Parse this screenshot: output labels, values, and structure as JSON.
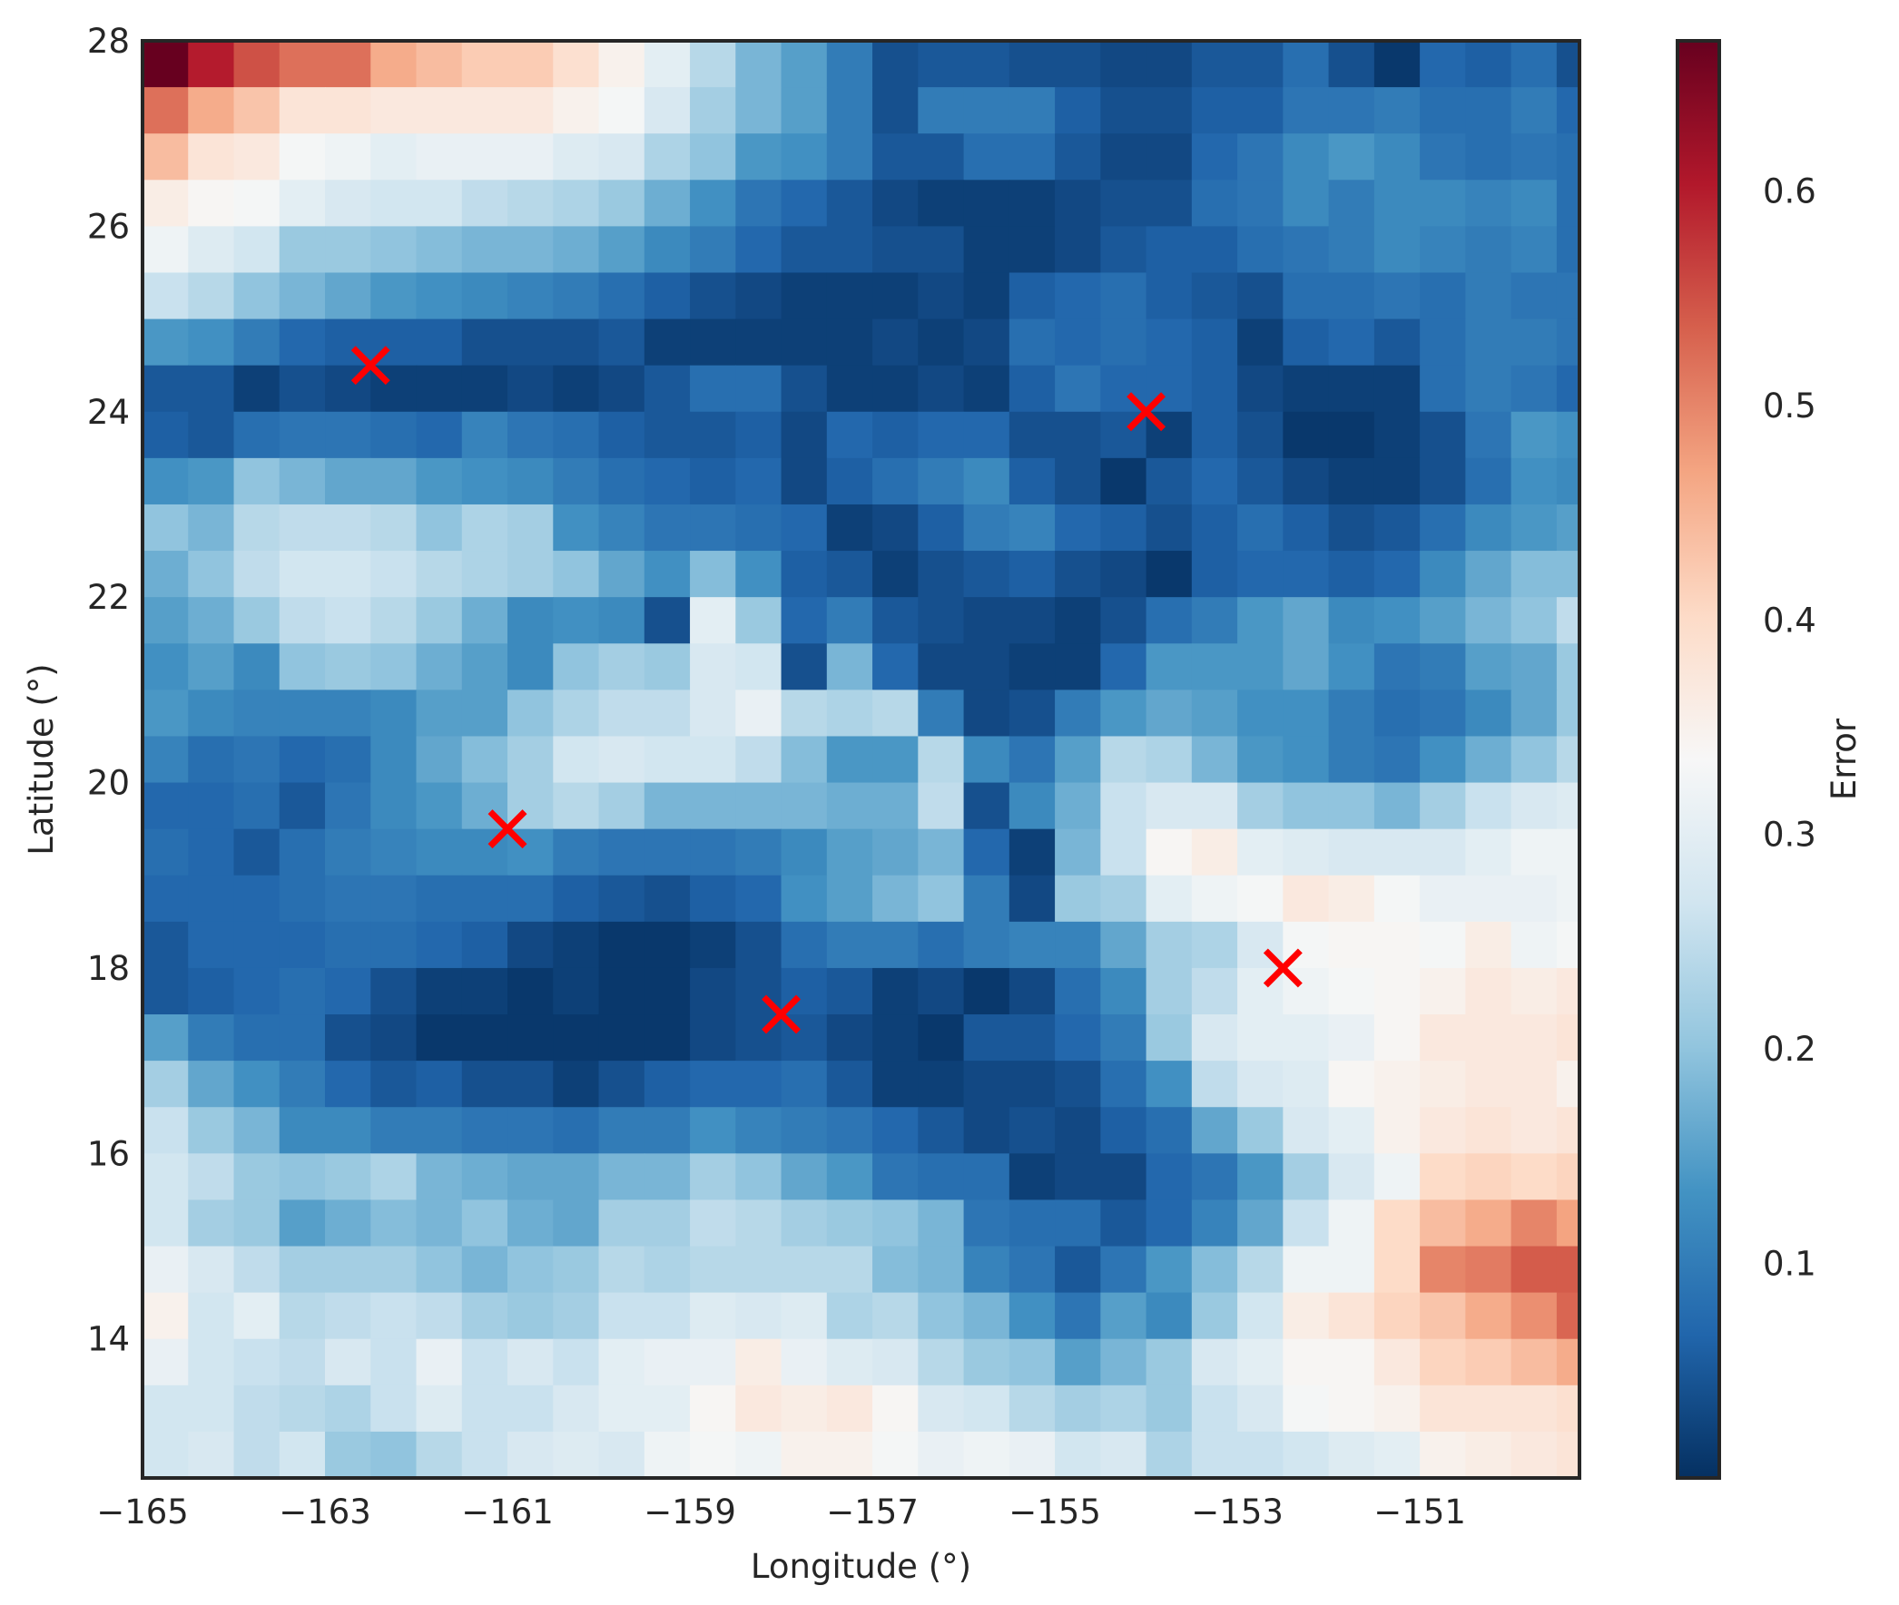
{
  "chart_data": {
    "type": "heatmap",
    "title": "",
    "xlabel": "Longitude (°)",
    "ylabel": "Latitude (°)",
    "colorbar_label": "Error",
    "colormap": "RdBu_r",
    "xlim": [
      -165,
      -149.25
    ],
    "ylim": [
      12.5,
      28
    ],
    "vmin": 0.0,
    "vmax": 0.67,
    "x_ticks": [
      -165,
      -163,
      -161,
      -159,
      -157,
      -155,
      -153,
      -151
    ],
    "x_tick_labels": [
      "−165",
      "−163",
      "−161",
      "−159",
      "−157",
      "−155",
      "−153",
      "−151"
    ],
    "y_ticks": [
      14,
      16,
      18,
      20,
      22,
      24,
      26,
      28
    ],
    "y_tick_labels": [
      "14",
      "16",
      "18",
      "20",
      "22",
      "24",
      "26",
      "28"
    ],
    "colorbar_ticks": [
      0.1,
      0.2,
      0.3,
      0.4,
      0.5,
      0.6
    ],
    "colorbar_tick_labels": [
      "0.1",
      "0.2",
      "0.3",
      "0.4",
      "0.5",
      "0.6"
    ],
    "grid": false,
    "marker_color": "#ff0000",
    "markers": [
      {
        "lon": -162.5,
        "lat": 24.5
      },
      {
        "lon": -161.0,
        "lat": 19.5
      },
      {
        "lon": -158.0,
        "lat": 17.5
      },
      {
        "lon": -154.0,
        "lat": 24.0
      },
      {
        "lon": -152.5,
        "lat": 18.0
      }
    ],
    "grid_cell_width_deg": 0.5,
    "grid_cell_height_deg": 0.5,
    "rows_top_to_bottom": [
      [
        0.67,
        0.6,
        0.55,
        0.52,
        0.52,
        0.46,
        0.44,
        0.42,
        0.42,
        0.39,
        0.35,
        0.3,
        0.24,
        0.18,
        0.15,
        0.1,
        0.04,
        0.05,
        0.05,
        0.04,
        0.04,
        0.03,
        0.03,
        0.05,
        0.05,
        0.08,
        0.04,
        0.01,
        0.07,
        0.06,
        0.08,
        0.04
      ],
      [
        0.52,
        0.46,
        0.43,
        0.38,
        0.38,
        0.37,
        0.37,
        0.37,
        0.37,
        0.35,
        0.33,
        0.28,
        0.22,
        0.18,
        0.15,
        0.1,
        0.04,
        0.1,
        0.1,
        0.1,
        0.06,
        0.04,
        0.04,
        0.06,
        0.06,
        0.09,
        0.09,
        0.1,
        0.08,
        0.08,
        0.1,
        0.07
      ],
      [
        0.44,
        0.38,
        0.37,
        0.33,
        0.32,
        0.3,
        0.31,
        0.31,
        0.31,
        0.29,
        0.28,
        0.23,
        0.2,
        0.14,
        0.13,
        0.1,
        0.05,
        0.05,
        0.08,
        0.08,
        0.05,
        0.03,
        0.03,
        0.07,
        0.09,
        0.12,
        0.14,
        0.12,
        0.09,
        0.08,
        0.09,
        0.08
      ],
      [
        0.36,
        0.34,
        0.33,
        0.3,
        0.28,
        0.27,
        0.27,
        0.25,
        0.24,
        0.23,
        0.21,
        0.17,
        0.13,
        0.09,
        0.07,
        0.05,
        0.03,
        0.02,
        0.02,
        0.02,
        0.03,
        0.04,
        0.04,
        0.08,
        0.09,
        0.12,
        0.1,
        0.12,
        0.12,
        0.11,
        0.12,
        0.08
      ],
      [
        0.32,
        0.29,
        0.27,
        0.21,
        0.21,
        0.2,
        0.19,
        0.18,
        0.18,
        0.17,
        0.15,
        0.12,
        0.1,
        0.07,
        0.05,
        0.05,
        0.04,
        0.04,
        0.02,
        0.02,
        0.03,
        0.05,
        0.06,
        0.06,
        0.08,
        0.09,
        0.1,
        0.12,
        0.11,
        0.1,
        0.11,
        0.08
      ],
      [
        0.26,
        0.24,
        0.2,
        0.18,
        0.16,
        0.14,
        0.13,
        0.12,
        0.11,
        0.1,
        0.08,
        0.06,
        0.04,
        0.03,
        0.02,
        0.02,
        0.02,
        0.03,
        0.02,
        0.06,
        0.07,
        0.08,
        0.06,
        0.05,
        0.04,
        0.08,
        0.08,
        0.09,
        0.08,
        0.1,
        0.09,
        0.09
      ],
      [
        0.14,
        0.13,
        0.1,
        0.07,
        0.06,
        0.06,
        0.06,
        0.04,
        0.04,
        0.04,
        0.05,
        0.02,
        0.02,
        0.02,
        0.02,
        0.02,
        0.03,
        0.02,
        0.03,
        0.08,
        0.07,
        0.08,
        0.07,
        0.06,
        0.02,
        0.06,
        0.07,
        0.05,
        0.08,
        0.1,
        0.1,
        0.09
      ],
      [
        0.05,
        0.05,
        0.02,
        0.04,
        0.03,
        0.02,
        0.02,
        0.02,
        0.03,
        0.02,
        0.03,
        0.05,
        0.08,
        0.08,
        0.04,
        0.02,
        0.02,
        0.03,
        0.02,
        0.06,
        0.09,
        0.07,
        0.07,
        0.06,
        0.03,
        0.02,
        0.02,
        0.02,
        0.08,
        0.1,
        0.09,
        0.07
      ],
      [
        0.06,
        0.05,
        0.08,
        0.09,
        0.09,
        0.08,
        0.07,
        0.11,
        0.09,
        0.08,
        0.06,
        0.05,
        0.05,
        0.06,
        0.03,
        0.07,
        0.06,
        0.07,
        0.07,
        0.04,
        0.04,
        0.05,
        0.02,
        0.06,
        0.04,
        0.01,
        0.01,
        0.02,
        0.04,
        0.09,
        0.14,
        0.13
      ],
      [
        0.13,
        0.14,
        0.2,
        0.18,
        0.16,
        0.16,
        0.14,
        0.13,
        0.12,
        0.1,
        0.08,
        0.07,
        0.06,
        0.07,
        0.03,
        0.06,
        0.08,
        0.1,
        0.12,
        0.06,
        0.04,
        0.01,
        0.05,
        0.07,
        0.05,
        0.03,
        0.02,
        0.02,
        0.04,
        0.08,
        0.13,
        0.12
      ],
      [
        0.2,
        0.18,
        0.24,
        0.25,
        0.25,
        0.24,
        0.2,
        0.23,
        0.22,
        0.13,
        0.11,
        0.09,
        0.09,
        0.08,
        0.07,
        0.02,
        0.03,
        0.06,
        0.1,
        0.11,
        0.07,
        0.06,
        0.04,
        0.06,
        0.08,
        0.06,
        0.04,
        0.05,
        0.08,
        0.12,
        0.14,
        0.15
      ],
      [
        0.17,
        0.2,
        0.25,
        0.27,
        0.27,
        0.26,
        0.24,
        0.23,
        0.22,
        0.2,
        0.16,
        0.13,
        0.19,
        0.13,
        0.06,
        0.05,
        0.02,
        0.04,
        0.05,
        0.06,
        0.04,
        0.03,
        0.01,
        0.06,
        0.07,
        0.07,
        0.06,
        0.07,
        0.12,
        0.16,
        0.19,
        0.19
      ],
      [
        0.15,
        0.17,
        0.21,
        0.25,
        0.26,
        0.24,
        0.21,
        0.17,
        0.12,
        0.13,
        0.12,
        0.04,
        0.3,
        0.21,
        0.07,
        0.1,
        0.05,
        0.04,
        0.03,
        0.03,
        0.02,
        0.04,
        0.08,
        0.1,
        0.14,
        0.16,
        0.12,
        0.13,
        0.15,
        0.18,
        0.2,
        0.25
      ],
      [
        0.13,
        0.15,
        0.12,
        0.2,
        0.21,
        0.2,
        0.17,
        0.15,
        0.12,
        0.2,
        0.22,
        0.21,
        0.28,
        0.27,
        0.04,
        0.18,
        0.07,
        0.03,
        0.03,
        0.02,
        0.02,
        0.07,
        0.14,
        0.14,
        0.14,
        0.16,
        0.13,
        0.09,
        0.1,
        0.15,
        0.16,
        0.21
      ],
      [
        0.14,
        0.12,
        0.11,
        0.11,
        0.11,
        0.12,
        0.15,
        0.15,
        0.2,
        0.23,
        0.25,
        0.25,
        0.28,
        0.31,
        0.24,
        0.23,
        0.24,
        0.1,
        0.03,
        0.04,
        0.1,
        0.14,
        0.16,
        0.15,
        0.13,
        0.13,
        0.1,
        0.08,
        0.09,
        0.12,
        0.16,
        0.21
      ],
      [
        0.11,
        0.08,
        0.09,
        0.07,
        0.08,
        0.12,
        0.16,
        0.19,
        0.22,
        0.27,
        0.28,
        0.27,
        0.27,
        0.25,
        0.19,
        0.14,
        0.14,
        0.24,
        0.12,
        0.09,
        0.15,
        0.24,
        0.23,
        0.18,
        0.14,
        0.13,
        0.1,
        0.09,
        0.13,
        0.17,
        0.2,
        0.24
      ],
      [
        0.07,
        0.07,
        0.08,
        0.05,
        0.09,
        0.12,
        0.14,
        0.17,
        0.22,
        0.24,
        0.22,
        0.18,
        0.18,
        0.18,
        0.18,
        0.17,
        0.17,
        0.25,
        0.04,
        0.12,
        0.17,
        0.26,
        0.28,
        0.28,
        0.22,
        0.2,
        0.2,
        0.18,
        0.22,
        0.26,
        0.28,
        0.29
      ],
      [
        0.08,
        0.07,
        0.05,
        0.08,
        0.1,
        0.11,
        0.12,
        0.12,
        0.13,
        0.1,
        0.09,
        0.09,
        0.09,
        0.1,
        0.12,
        0.15,
        0.16,
        0.18,
        0.07,
        0.02,
        0.18,
        0.26,
        0.34,
        0.36,
        0.3,
        0.29,
        0.28,
        0.28,
        0.28,
        0.3,
        0.32,
        0.32
      ],
      [
        0.07,
        0.07,
        0.07,
        0.08,
        0.09,
        0.09,
        0.08,
        0.08,
        0.08,
        0.06,
        0.05,
        0.04,
        0.06,
        0.07,
        0.13,
        0.15,
        0.18,
        0.2,
        0.1,
        0.03,
        0.21,
        0.22,
        0.3,
        0.32,
        0.33,
        0.37,
        0.36,
        0.33,
        0.31,
        0.31,
        0.31,
        0.32
      ],
      [
        0.05,
        0.07,
        0.07,
        0.07,
        0.08,
        0.08,
        0.07,
        0.06,
        0.03,
        0.02,
        0.01,
        0.01,
        0.02,
        0.04,
        0.08,
        0.1,
        0.1,
        0.08,
        0.1,
        0.11,
        0.11,
        0.16,
        0.22,
        0.23,
        0.28,
        0.33,
        0.34,
        0.34,
        0.33,
        0.36,
        0.32,
        0.33
      ],
      [
        0.05,
        0.06,
        0.07,
        0.08,
        0.07,
        0.04,
        0.02,
        0.02,
        0.01,
        0.02,
        0.01,
        0.01,
        0.03,
        0.04,
        0.06,
        0.05,
        0.02,
        0.03,
        0.01,
        0.03,
        0.08,
        0.12,
        0.22,
        0.25,
        0.3,
        0.32,
        0.33,
        0.34,
        0.35,
        0.37,
        0.36,
        0.37
      ],
      [
        0.15,
        0.1,
        0.08,
        0.08,
        0.04,
        0.03,
        0.01,
        0.01,
        0.01,
        0.01,
        0.01,
        0.01,
        0.03,
        0.04,
        0.05,
        0.03,
        0.02,
        0.01,
        0.05,
        0.05,
        0.07,
        0.1,
        0.21,
        0.28,
        0.3,
        0.3,
        0.31,
        0.34,
        0.37,
        0.37,
        0.37,
        0.38
      ],
      [
        0.22,
        0.16,
        0.13,
        0.1,
        0.07,
        0.05,
        0.06,
        0.04,
        0.04,
        0.02,
        0.04,
        0.06,
        0.07,
        0.07,
        0.08,
        0.05,
        0.02,
        0.02,
        0.03,
        0.03,
        0.04,
        0.08,
        0.13,
        0.25,
        0.28,
        0.29,
        0.34,
        0.35,
        0.36,
        0.37,
        0.37,
        0.35
      ],
      [
        0.26,
        0.21,
        0.18,
        0.12,
        0.12,
        0.1,
        0.1,
        0.09,
        0.09,
        0.08,
        0.1,
        0.1,
        0.13,
        0.11,
        0.1,
        0.09,
        0.07,
        0.05,
        0.03,
        0.04,
        0.03,
        0.06,
        0.08,
        0.16,
        0.21,
        0.28,
        0.3,
        0.35,
        0.37,
        0.38,
        0.37,
        0.38
      ],
      [
        0.27,
        0.25,
        0.21,
        0.2,
        0.21,
        0.23,
        0.18,
        0.17,
        0.16,
        0.16,
        0.18,
        0.18,
        0.22,
        0.2,
        0.16,
        0.14,
        0.09,
        0.08,
        0.08,
        0.02,
        0.03,
        0.03,
        0.07,
        0.09,
        0.14,
        0.22,
        0.28,
        0.32,
        0.4,
        0.41,
        0.4,
        0.41
      ],
      [
        0.27,
        0.22,
        0.21,
        0.15,
        0.17,
        0.19,
        0.18,
        0.2,
        0.17,
        0.16,
        0.22,
        0.22,
        0.25,
        0.24,
        0.22,
        0.21,
        0.2,
        0.18,
        0.09,
        0.08,
        0.08,
        0.05,
        0.07,
        0.11,
        0.16,
        0.26,
        0.32,
        0.4,
        0.44,
        0.46,
        0.5,
        0.47
      ],
      [
        0.31,
        0.28,
        0.25,
        0.22,
        0.22,
        0.22,
        0.2,
        0.18,
        0.2,
        0.21,
        0.24,
        0.23,
        0.24,
        0.24,
        0.24,
        0.24,
        0.19,
        0.18,
        0.11,
        0.09,
        0.05,
        0.09,
        0.14,
        0.19,
        0.24,
        0.32,
        0.32,
        0.4,
        0.5,
        0.51,
        0.54,
        0.54
      ],
      [
        0.35,
        0.27,
        0.3,
        0.24,
        0.25,
        0.26,
        0.25,
        0.22,
        0.21,
        0.22,
        0.26,
        0.26,
        0.29,
        0.28,
        0.29,
        0.23,
        0.24,
        0.2,
        0.18,
        0.13,
        0.09,
        0.15,
        0.12,
        0.21,
        0.27,
        0.36,
        0.38,
        0.41,
        0.43,
        0.46,
        0.49,
        0.53
      ],
      [
        0.31,
        0.27,
        0.26,
        0.25,
        0.28,
        0.26,
        0.31,
        0.26,
        0.28,
        0.26,
        0.3,
        0.31,
        0.31,
        0.36,
        0.31,
        0.29,
        0.28,
        0.24,
        0.21,
        0.2,
        0.15,
        0.18,
        0.21,
        0.28,
        0.3,
        0.34,
        0.34,
        0.37,
        0.41,
        0.42,
        0.44,
        0.46
      ],
      [
        0.27,
        0.27,
        0.25,
        0.24,
        0.23,
        0.26,
        0.29,
        0.26,
        0.26,
        0.28,
        0.3,
        0.3,
        0.34,
        0.37,
        0.36,
        0.37,
        0.34,
        0.28,
        0.27,
        0.24,
        0.22,
        0.23,
        0.21,
        0.26,
        0.28,
        0.33,
        0.34,
        0.35,
        0.38,
        0.38,
        0.38,
        0.39
      ],
      [
        0.27,
        0.28,
        0.25,
        0.27,
        0.21,
        0.2,
        0.24,
        0.26,
        0.28,
        0.29,
        0.28,
        0.32,
        0.33,
        0.32,
        0.35,
        0.35,
        0.33,
        0.31,
        0.32,
        0.31,
        0.27,
        0.28,
        0.23,
        0.26,
        0.26,
        0.27,
        0.29,
        0.3,
        0.35,
        0.36,
        0.37,
        0.38
      ],
      [
        0.3,
        0.28,
        0.27,
        0.2,
        0.22,
        0.2,
        0.21,
        0.22,
        0.22,
        0.22,
        0.26,
        0.25,
        0.29,
        0.3,
        0.31,
        0.32,
        0.33,
        0.3,
        0.35,
        0.28,
        0.31,
        0.31,
        0.28,
        0.29,
        0.3,
        0.31,
        0.33,
        0.34,
        0.35,
        0.37,
        0.37,
        0.38
      ]
    ]
  }
}
